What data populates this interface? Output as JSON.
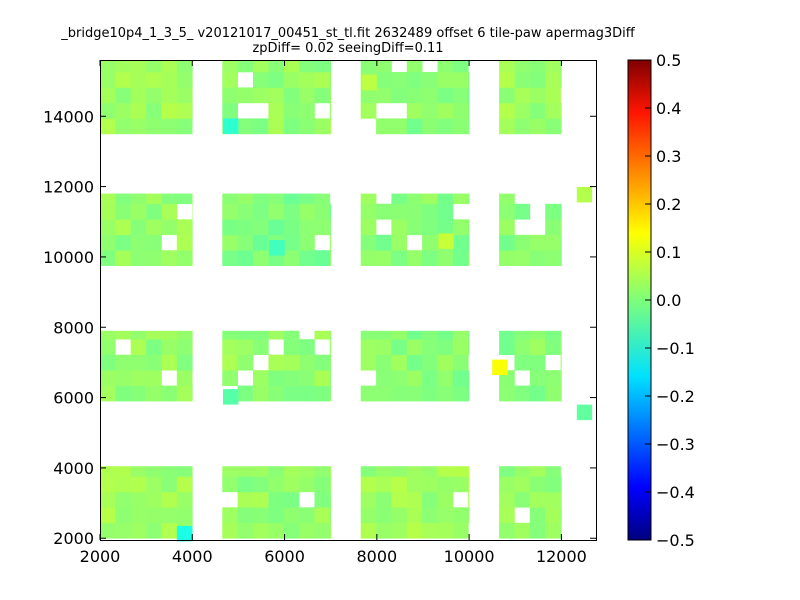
{
  "chart_data": {
    "type": "heatmap",
    "title_line1": "_bridge10p4_1_3_5_ v20121017_00451_st_tl.fit 2632489 offset 6 tile-paw apermag3Diff",
    "title_line2": "zpDiff= 0.02 seeingDiff=0.11",
    "xlabel": "",
    "ylabel": "",
    "xlim": [
      2000,
      12750
    ],
    "ylim": [
      1950,
      15600
    ],
    "x_ticks": [
      2000,
      4000,
      6000,
      8000,
      10000,
      12000
    ],
    "y_ticks": [
      2000,
      4000,
      6000,
      8000,
      10000,
      12000,
      14000
    ],
    "colorbar": {
      "colormap": "jet",
      "vmin": -0.5,
      "vmax": 0.5,
      "ticks": [
        "0.5",
        "0.4",
        "0.3",
        "0.2",
        "0.1",
        "0.0",
        "−0.1",
        "−0.2",
        "−0.3",
        "−0.4",
        "−0.5"
      ]
    },
    "cell_size": {
      "x": 333,
      "y": 440
    },
    "detectors": [
      {
        "x_range": [
          2000,
          4000
        ],
        "y_range": [
          2000,
          4050
        ],
        "value": 0.03
      },
      {
        "x_range": [
          4650,
          7000
        ],
        "y_range": [
          2000,
          4050
        ],
        "value": 0.02
      },
      {
        "x_range": [
          7650,
          10000
        ],
        "y_range": [
          2000,
          4050
        ],
        "value": 0.03
      },
      {
        "x_range": [
          10650,
          12000
        ],
        "y_range": [
          2000,
          4050
        ],
        "value": 0.02
      },
      {
        "x_range": [
          2000,
          4000
        ],
        "y_range": [
          5900,
          7900
        ],
        "value": 0.02
      },
      {
        "x_range": [
          4650,
          7000
        ],
        "y_range": [
          5900,
          7900
        ],
        "value": 0.02
      },
      {
        "x_range": [
          7650,
          10000
        ],
        "y_range": [
          5900,
          7900
        ],
        "value": 0.01
      },
      {
        "x_range": [
          10650,
          12000
        ],
        "y_range": [
          5900,
          7900
        ],
        "value": 0.01
      },
      {
        "x_range": [
          2000,
          4000
        ],
        "y_range": [
          9750,
          11800
        ],
        "value": 0.02
      },
      {
        "x_range": [
          4650,
          7000
        ],
        "y_range": [
          9750,
          11800
        ],
        "value": 0.0
      },
      {
        "x_range": [
          7650,
          10000
        ],
        "y_range": [
          9750,
          11800
        ],
        "value": 0.01
      },
      {
        "x_range": [
          10650,
          12000
        ],
        "y_range": [
          9750,
          11800
        ],
        "value": 0.01
      },
      {
        "x_range": [
          2000,
          4000
        ],
        "y_range": [
          13500,
          15600
        ],
        "value": 0.03
      },
      {
        "x_range": [
          4650,
          7000
        ],
        "y_range": [
          13500,
          15600
        ],
        "value": 0.02
      },
      {
        "x_range": [
          7650,
          10000
        ],
        "y_range": [
          13500,
          15600
        ],
        "value": 0.01
      },
      {
        "x_range": [
          10650,
          12000
        ],
        "y_range": [
          13500,
          15600
        ],
        "value": 0.03
      }
    ],
    "outliers": [
      {
        "x": 10667,
        "y": 6860,
        "value": 0.12
      },
      {
        "x": 3833,
        "y": 2130,
        "value": -0.1
      },
      {
        "x": 4833,
        "y": 13720,
        "value": -0.08
      },
      {
        "x": 5833,
        "y": 10260,
        "value": -0.06
      },
      {
        "x": 4833,
        "y": 6020,
        "value": -0.04
      },
      {
        "x": 12500,
        "y": 5580,
        "value": -0.03
      },
      {
        "x": 7833,
        "y": 14960,
        "value": 0.06
      },
      {
        "x": 9500,
        "y": 10450,
        "value": 0.07
      },
      {
        "x": 12500,
        "y": 11770,
        "value": 0.05
      }
    ]
  }
}
